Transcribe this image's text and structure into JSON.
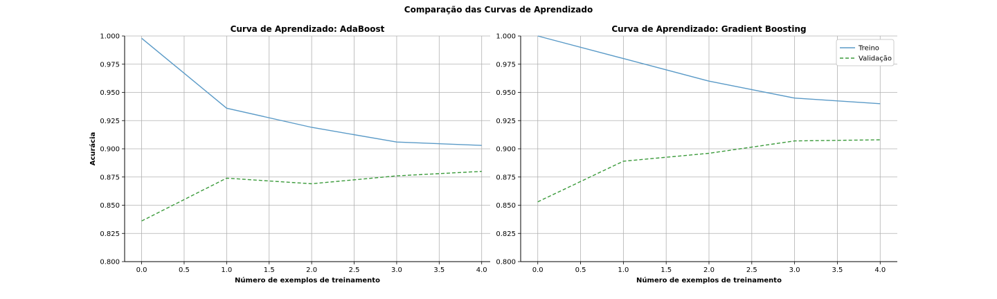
{
  "figure": {
    "suptitle": "Comparação das Curvas de Aprendizado"
  },
  "colors": {
    "train": "#5a9ac7",
    "validation": "#3a9a3a",
    "grid": "#b0b0b0"
  },
  "chart_data": [
    {
      "type": "line",
      "title": "Curva de Aprendizado: AdaBoost",
      "xlabel": "Número de exemplos de treinamento",
      "ylabel": "Acurácia",
      "xlim": [
        -0.2,
        4.1
      ],
      "ylim": [
        0.8,
        1.0
      ],
      "xticks": [
        "0.0",
        "0.5",
        "1.0",
        "1.5",
        "2.0",
        "2.5",
        "3.0",
        "3.5",
        "4.0"
      ],
      "yticks": [
        "0.800",
        "0.825",
        "0.850",
        "0.875",
        "0.900",
        "0.925",
        "0.950",
        "0.975",
        "1.000"
      ],
      "grid": true,
      "legend": false,
      "x": [
        0,
        1,
        2,
        3,
        4
      ],
      "series": [
        {
          "values": [
            0.998,
            0.936,
            0.919,
            0.906,
            0.903
          ],
          "style": "solid",
          "color": "#5a9ac7"
        },
        {
          "values": [
            0.836,
            0.874,
            0.869,
            0.876,
            0.88
          ],
          "style": "dashed",
          "color": "#3a9a3a"
        }
      ]
    },
    {
      "type": "line",
      "title": "Curva de Aprendizado: Gradient Boosting",
      "xlabel": "Número de exemplos de treinamento",
      "ylabel": "",
      "xlim": [
        -0.2,
        4.2
      ],
      "ylim": [
        0.8,
        1.0
      ],
      "xticks": [
        "0.0",
        "0.5",
        "1.0",
        "1.5",
        "2.0",
        "2.5",
        "3.0",
        "3.5",
        "4.0"
      ],
      "yticks": [
        "0.800",
        "0.825",
        "0.850",
        "0.875",
        "0.900",
        "0.925",
        "0.950",
        "0.975",
        "1.000"
      ],
      "grid": true,
      "legend": "top-right",
      "x": [
        0,
        1,
        2,
        3,
        4
      ],
      "series": [
        {
          "name": "Treino",
          "values": [
            1.0,
            0.98,
            0.96,
            0.945,
            0.94
          ],
          "style": "solid",
          "color": "#5a9ac7"
        },
        {
          "name": "Validação",
          "values": [
            0.853,
            0.889,
            0.896,
            0.907,
            0.908
          ],
          "style": "dashed",
          "color": "#3a9a3a"
        }
      ]
    }
  ]
}
